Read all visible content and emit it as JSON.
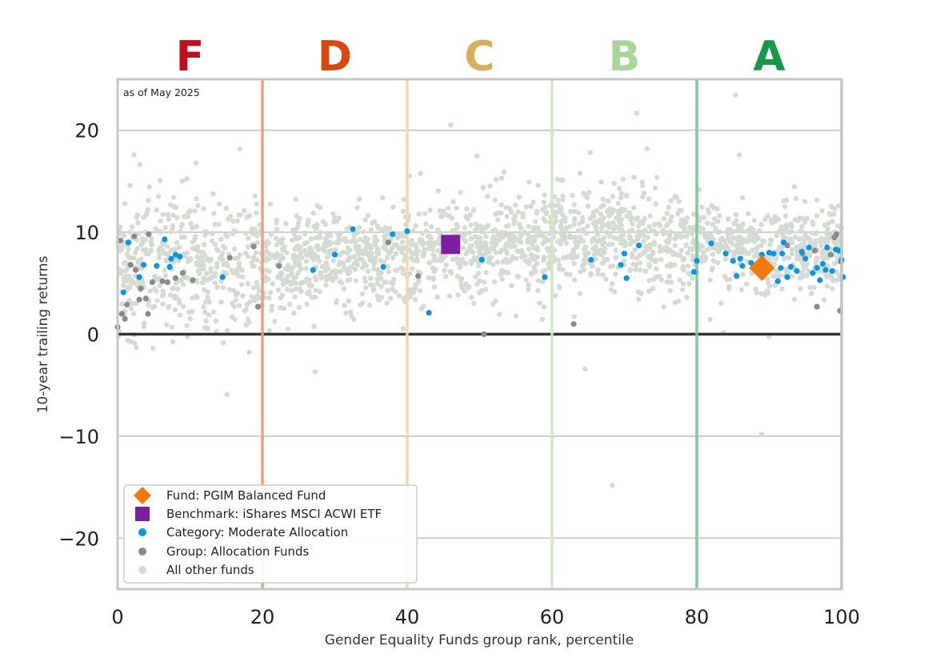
{
  "chart_data": {
    "type": "scatter",
    "annotation": "as of May 2025",
    "xlabel": "Gender Equality Funds group rank, percentile",
    "ylabel": "10-year trailing returns",
    "xlim": [
      0,
      100
    ],
    "ylim": [
      -25,
      25
    ],
    "x_ticks": [
      0,
      20,
      40,
      60,
      80,
      100
    ],
    "y_ticks": [
      -20,
      -10,
      0,
      10,
      20
    ],
    "x_tick_labels": [
      "0",
      "20",
      "40",
      "60",
      "80",
      "100"
    ],
    "y_tick_labels": [
      "−20",
      "−10",
      "0",
      "10",
      "20"
    ],
    "grid": "horizontal",
    "zero_line": 0,
    "grades": [
      {
        "label": "F",
        "center": 10,
        "color": "#c0101f"
      },
      {
        "label": "D",
        "center": 30,
        "color": "#d9480f"
      },
      {
        "label": "C",
        "center": 50,
        "color": "#d6b05a"
      },
      {
        "label": "B",
        "center": 70,
        "color": "#a8d69a"
      },
      {
        "label": "A",
        "center": 90,
        "color": "#15984a"
      }
    ],
    "grade_boundaries": [
      {
        "x": 20,
        "color": "#ee9a7e"
      },
      {
        "x": 40,
        "color": "#f0d9a8"
      },
      {
        "x": 60,
        "color": "#cfe8c6"
      },
      {
        "x": 80,
        "color": "#7cc896"
      },
      {
        "x": 100,
        "color": "#7cc896"
      }
    ],
    "legend_position": "lower-left",
    "series": [
      {
        "name": "Fund: PGIM Balanced Fund",
        "marker": "diamond",
        "color": "#f5780e",
        "points": [
          [
            89,
            6.5
          ]
        ]
      },
      {
        "name": "Benchmark: iShares MSCI ACWI ETF",
        "marker": "square",
        "color": "#7b1fa2",
        "points": [
          [
            46,
            8.8
          ]
        ]
      },
      {
        "name": "Category: Moderate Allocation",
        "marker": "dot",
        "color": "#0a94e6",
        "points": [
          [
            0.8,
            4.1
          ],
          [
            1.5,
            9.0
          ],
          [
            3.0,
            5.6
          ],
          [
            3.6,
            6.8
          ],
          [
            5.4,
            6.7
          ],
          [
            6.5,
            9.3
          ],
          [
            7.2,
            6.6
          ],
          [
            7.4,
            7.4
          ],
          [
            8.0,
            7.8
          ],
          [
            8.6,
            7.6
          ],
          [
            14.5,
            5.6
          ],
          [
            27.0,
            6.3
          ],
          [
            30.0,
            7.8
          ],
          [
            32.5,
            10.3
          ],
          [
            36.7,
            6.6
          ],
          [
            38.0,
            9.8
          ],
          [
            40.0,
            10.1
          ],
          [
            43.0,
            2.1
          ],
          [
            50.3,
            7.3
          ],
          [
            59.0,
            5.6
          ],
          [
            65.4,
            7.3
          ],
          [
            69.5,
            6.8
          ],
          [
            70.0,
            7.9
          ],
          [
            70.3,
            5.5
          ],
          [
            72.0,
            8.7
          ],
          [
            79.6,
            6.1
          ],
          [
            80.0,
            7.2
          ],
          [
            82.0,
            8.9
          ],
          [
            84.0,
            7.9
          ],
          [
            85.0,
            7.2
          ],
          [
            85.5,
            5.7
          ],
          [
            86.3,
            6.7
          ],
          [
            86.0,
            7.4
          ],
          [
            87.5,
            7.0
          ],
          [
            89.0,
            7.8
          ],
          [
            90.0,
            8.0
          ],
          [
            90.6,
            7.9
          ],
          [
            91.2,
            5.2
          ],
          [
            91.6,
            6.5
          ],
          [
            91.8,
            7.9
          ],
          [
            92.0,
            9.0
          ],
          [
            92.5,
            5.6
          ],
          [
            93.0,
            6.6
          ],
          [
            93.8,
            6.2
          ],
          [
            94.5,
            8.1
          ],
          [
            95.0,
            7.4
          ],
          [
            95.5,
            8.5
          ],
          [
            96.0,
            6.0
          ],
          [
            96.6,
            6.5
          ],
          [
            97.0,
            5.3
          ],
          [
            97.4,
            6.9
          ],
          [
            97.8,
            6.3
          ],
          [
            98.0,
            8.5
          ],
          [
            98.7,
            6.2
          ],
          [
            99.2,
            8.3
          ],
          [
            99.6,
            8.2
          ],
          [
            100.0,
            7.3
          ],
          [
            100.2,
            5.6
          ]
        ]
      },
      {
        "name": "Group: Allocation Funds",
        "marker": "dot",
        "color": "#8a8a8a",
        "points": [
          [
            0.0,
            0.7
          ],
          [
            0.4,
            9.2
          ],
          [
            0.6,
            2.0
          ],
          [
            1.0,
            1.5
          ],
          [
            1.3,
            2.9
          ],
          [
            1.8,
            6.8
          ],
          [
            2.3,
            9.6
          ],
          [
            2.5,
            6.3
          ],
          [
            3.0,
            3.4
          ],
          [
            3.2,
            4.5
          ],
          [
            3.9,
            3.5
          ],
          [
            4.2,
            2.0
          ],
          [
            4.3,
            9.8
          ],
          [
            4.8,
            5.1
          ],
          [
            6.2,
            5.2
          ],
          [
            6.9,
            5.1
          ],
          [
            8.0,
            5.5
          ],
          [
            9.0,
            6.0
          ],
          [
            10.4,
            5.3
          ],
          [
            15.5,
            7.5
          ],
          [
            18.8,
            8.6
          ],
          [
            19.4,
            2.7
          ],
          [
            22.3,
            6.7
          ],
          [
            37.4,
            9.0
          ],
          [
            41.5,
            5.7
          ],
          [
            50.6,
            0.0
          ],
          [
            63.0,
            1.0
          ],
          [
            92.5,
            8.7
          ],
          [
            94.6,
            7.9
          ],
          [
            96.3,
            8.2
          ],
          [
            96.6,
            2.7
          ],
          [
            98.5,
            7.8
          ],
          [
            99.0,
            9.5
          ],
          [
            99.3,
            9.8
          ],
          [
            99.8,
            2.3
          ],
          [
            99.9,
            7.1
          ]
        ]
      }
    ],
    "background_series": {
      "name": "All other funds",
      "marker": "dot",
      "color": "#d4dbd2",
      "count": 2300,
      "centers": [
        [
          0,
          6.5
        ],
        [
          10,
          6.6
        ],
        [
          20,
          6.8
        ],
        [
          30,
          7.2
        ],
        [
          40,
          7.8
        ],
        [
          50,
          8.7
        ],
        [
          60,
          9.3
        ],
        [
          70,
          9.6
        ],
        [
          80,
          9.1
        ],
        [
          90,
          8.2
        ],
        [
          100,
          7.8
        ]
      ]
    }
  }
}
